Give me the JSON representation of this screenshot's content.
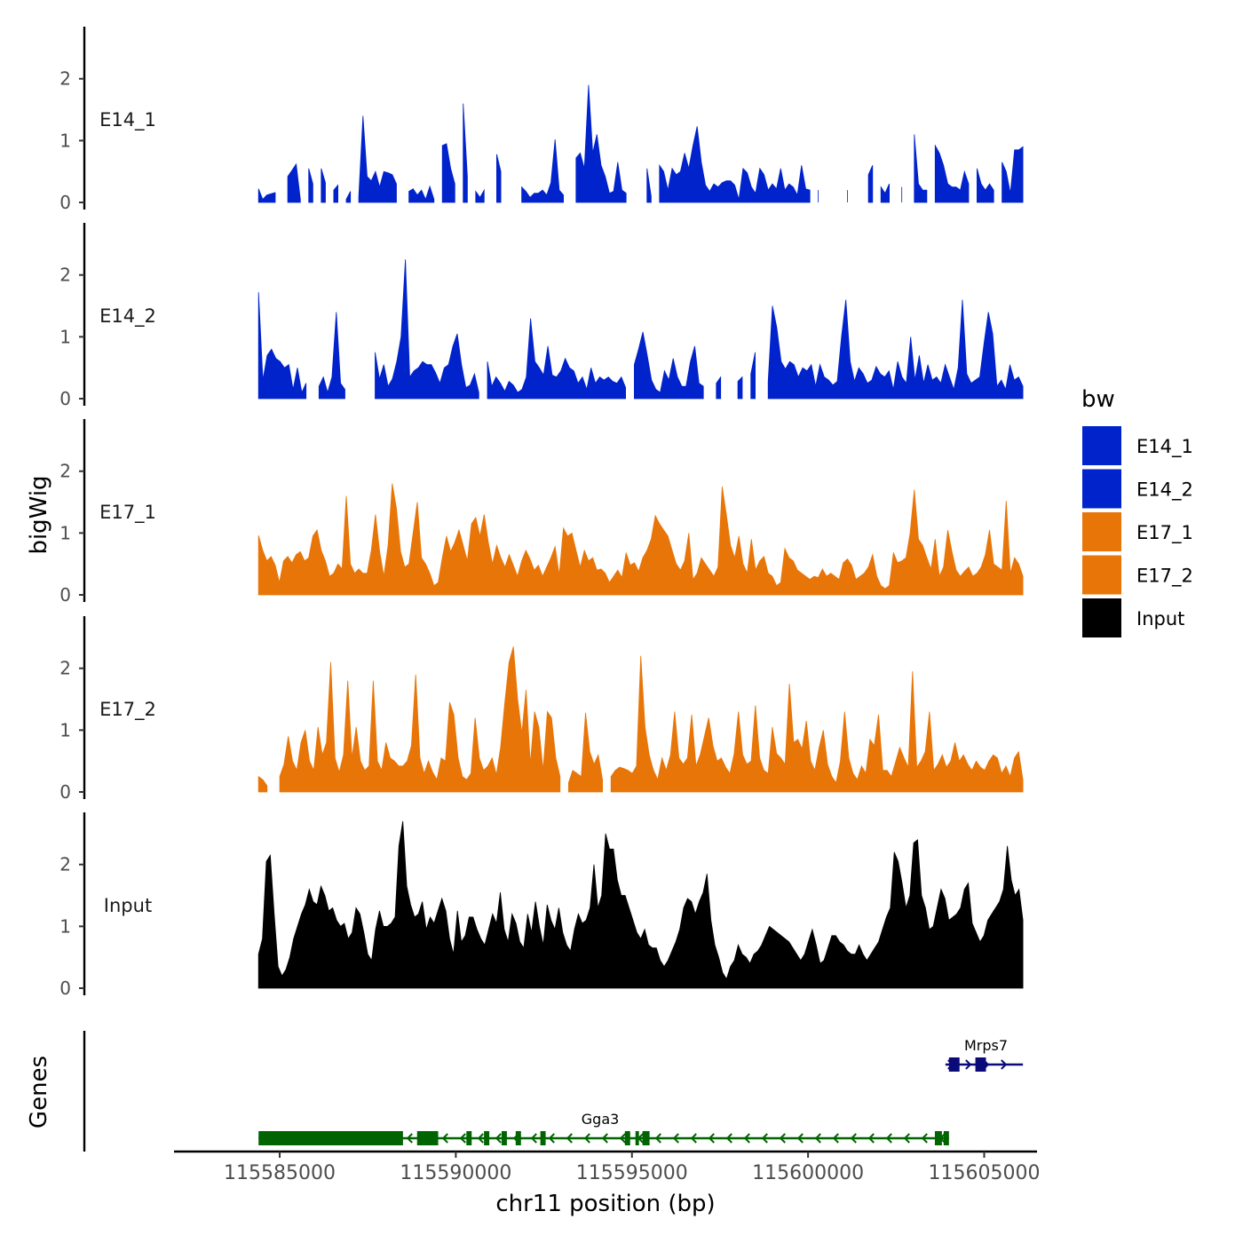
{
  "chart_data": {
    "type": "area",
    "title": "",
    "xlabel": "chr11 position (bp)",
    "ylabel_tracks": "bigWig",
    "ylabel_genes": "Genes",
    "x_range": [
      115582000,
      115606500
    ],
    "data_x_range": [
      115584400,
      115606100
    ],
    "x_ticks": [
      115585000,
      115590000,
      115595000,
      115600000,
      115605000
    ],
    "x_tick_labels": [
      "115585000",
      "115590000",
      "115595000",
      "115600000",
      "115605000"
    ],
    "ylim": [
      0,
      2.8
    ],
    "y_ticks": [
      0,
      1,
      2
    ],
    "y_tick_labels": [
      "0",
      "1",
      "2"
    ],
    "legend": {
      "title": "bw",
      "position": "right",
      "entries": [
        {
          "label": "E14_1",
          "color": "#0023CC"
        },
        {
          "label": "E14_2",
          "color": "#0023CC"
        },
        {
          "label": "E17_1",
          "color": "#E87508"
        },
        {
          "label": "E17_2",
          "color": "#E87508"
        },
        {
          "label": "Input",
          "color": "#000000"
        }
      ]
    },
    "series": [
      {
        "name": "E14_1",
        "color": "#0023CC",
        "values": [
          0.22,
          0.05,
          0.12,
          0.14,
          0.16,
          0,
          0,
          0.42,
          0.52,
          0.62,
          0.05,
          0,
          0.55,
          0.3,
          0,
          0.55,
          0.32,
          0,
          0.2,
          0.28,
          0,
          0.05,
          0.18,
          0,
          0.1,
          1.4,
          0.42,
          0.35,
          0.5,
          0.25,
          0.5,
          0.48,
          0.45,
          0.3,
          0,
          0,
          0.18,
          0.22,
          0.12,
          0.2,
          0.05,
          0.26,
          0.05,
          0,
          0.92,
          0.95,
          0.55,
          0.3,
          0,
          1.6,
          0.42,
          0,
          0.18,
          0.08,
          0.2,
          0,
          0,
          0.78,
          0.5,
          0,
          0,
          0,
          0,
          0.25,
          0.18,
          0.08,
          0.15,
          0.15,
          0.2,
          0.12,
          0.32,
          1.02,
          0.2,
          0.12,
          0,
          0,
          0.72,
          0.8,
          0.55,
          1.9,
          0.8,
          1.1,
          0.6,
          0.42,
          0.15,
          0.18,
          0.65,
          0.2,
          0.15,
          0,
          0,
          0,
          0,
          0.55,
          0.1,
          0,
          0.6,
          0.5,
          0.2,
          0.55,
          0.45,
          0.5,
          0.8,
          0.55,
          0.92,
          1.23,
          0.65,
          0.28,
          0.18,
          0.3,
          0.25,
          0.32,
          0.35,
          0.35,
          0.28,
          0.05,
          0.55,
          0.48,
          0.25,
          0.15,
          0.55,
          0.45,
          0.2,
          0.3,
          0.22,
          0.55,
          0.2,
          0.3,
          0.25,
          0.12,
          0.6,
          0.22,
          0.2,
          0,
          0.2,
          0,
          0,
          0,
          0,
          0,
          0,
          0.2,
          0,
          0,
          0,
          0,
          0.45,
          0.6,
          0,
          0.25,
          0.15,
          0.3,
          0,
          0,
          0.25,
          0,
          0,
          1.1,
          0.3,
          0.2,
          0.2,
          0,
          0.92,
          0.8,
          0.6,
          0.3,
          0.25,
          0.25,
          0.2,
          0.5,
          0.3,
          0,
          0.55,
          0.3,
          0.2,
          0.3,
          0.2,
          0,
          0.65,
          0.5,
          0.15,
          0.85,
          0.85,
          0.9
        ]
      },
      {
        "name": "E14_2",
        "color": "#0023CC",
        "values": [
          1.72,
          0.3,
          0.7,
          0.8,
          0.65,
          0.6,
          0.5,
          0.55,
          0.15,
          0.5,
          0.1,
          0.25,
          0,
          0,
          0.2,
          0.35,
          0.1,
          0.35,
          1.4,
          0.25,
          0.15,
          0,
          0,
          0,
          0,
          0,
          0,
          0.75,
          0.32,
          0.55,
          0.2,
          0.32,
          0.6,
          1.0,
          2.25,
          0.35,
          0.45,
          0.5,
          0.6,
          0.55,
          0.55,
          0.42,
          0.25,
          0.5,
          0.55,
          0.85,
          1.05,
          0.55,
          0.18,
          0.22,
          0.4,
          0.1,
          0,
          0.6,
          0.2,
          0.35,
          0.25,
          0.12,
          0.28,
          0.22,
          0.1,
          0.15,
          0.35,
          1.3,
          0.6,
          0.5,
          0.38,
          0.85,
          0.38,
          0.35,
          0.45,
          0.65,
          0.5,
          0.45,
          0.25,
          0.35,
          0.15,
          0.5,
          0.25,
          0.35,
          0.3,
          0.35,
          0.28,
          0.25,
          0.35,
          0.18,
          0,
          0.55,
          0.8,
          1.08,
          0.7,
          0.3,
          0.15,
          0.1,
          0.45,
          0.3,
          0.65,
          0.35,
          0.2,
          0.2,
          0.6,
          0.85,
          0.25,
          0.2,
          0,
          0,
          0.25,
          0.35,
          0,
          0,
          0,
          0.28,
          0.35,
          0,
          0.4,
          0.75,
          0,
          0,
          0.28,
          1.5,
          1.15,
          0.6,
          0.48,
          0.6,
          0.55,
          0.35,
          0.5,
          0.45,
          0.55,
          0.2,
          0.55,
          0.35,
          0.3,
          0.22,
          0.28,
          1.0,
          1.6,
          0.6,
          0.28,
          0.5,
          0.4,
          0.25,
          0.3,
          0.52,
          0.4,
          0.35,
          0.45,
          0.15,
          0.6,
          0.35,
          0.25,
          1.0,
          0.3,
          0.7,
          0.25,
          0.55,
          0.3,
          0.35,
          0.25,
          0.55,
          0.35,
          0.15,
          0.5,
          1.6,
          0.4,
          0.25,
          0.3,
          0.35,
          0.9,
          1.4,
          1.05,
          0.2,
          0.3,
          0.15,
          0.55,
          0.3,
          0.35,
          0.2
        ]
      },
      {
        "name": "E17_1",
        "color": "#E87508",
        "values": [
          0.96,
          0.72,
          0.55,
          0.62,
          0.48,
          0.2,
          0.55,
          0.62,
          0.52,
          0.65,
          0.7,
          0.55,
          0.6,
          0.95,
          1.05,
          0.72,
          0.55,
          0.3,
          0.35,
          0.5,
          0.42,
          1.6,
          0.5,
          0.35,
          0.42,
          0.35,
          0.35,
          0.72,
          1.3,
          0.7,
          0.3,
          0.8,
          1.8,
          1.4,
          0.7,
          0.45,
          0.5,
          1.0,
          1.5,
          0.6,
          0.5,
          0.35,
          0.15,
          0.2,
          0.6,
          0.95,
          0.7,
          0.85,
          1.05,
          0.8,
          0.55,
          1.15,
          1.25,
          0.95,
          1.3,
          0.85,
          0.5,
          0.8,
          0.6,
          0.45,
          0.65,
          0.48,
          0.3,
          0.55,
          0.72,
          0.58,
          0.4,
          0.48,
          0.3,
          0.45,
          0.6,
          0.78,
          0.32,
          1.08,
          0.95,
          1.0,
          0.72,
          0.45,
          0.72,
          0.55,
          0.6,
          0.4,
          0.42,
          0.35,
          0.2,
          0.3,
          0.4,
          0.28,
          0.68,
          0.48,
          0.52,
          0.38,
          0.6,
          0.72,
          0.9,
          1.28,
          1.15,
          1.05,
          0.95,
          0.72,
          0.5,
          0.4,
          0.55,
          1.0,
          0.25,
          0.35,
          0.6,
          0.5,
          0.4,
          0.3,
          0.45,
          1.75,
          1.3,
          0.8,
          0.6,
          0.95,
          0.5,
          0.35,
          0.9,
          0.4,
          0.55,
          0.62,
          0.35,
          0.3,
          0.15,
          0.2,
          0.75,
          0.6,
          0.55,
          0.4,
          0.35,
          0.3,
          0.25,
          0.3,
          0.28,
          0.42,
          0.3,
          0.35,
          0.3,
          0.25,
          0.52,
          0.58,
          0.48,
          0.25,
          0.3,
          0.35,
          0.45,
          0.65,
          0.3,
          0.15,
          0.1,
          0.15,
          0.68,
          0.52,
          0.55,
          0.6,
          1.0,
          1.7,
          0.9,
          0.8,
          0.6,
          0.42,
          0.9,
          0.3,
          0.45,
          1.05,
          0.7,
          0.4,
          0.3,
          0.38,
          0.45,
          0.3,
          0.35,
          0.45,
          0.65,
          1.05,
          0.5,
          0.45,
          0.4,
          1.52,
          0.35,
          0.6,
          0.5,
          0.3
        ]
      },
      {
        "name": "E17_2",
        "color": "#E87508",
        "values": [
          0.25,
          0.2,
          0.1,
          0,
          0,
          0.25,
          0.45,
          0.9,
          0.5,
          0.35,
          0.8,
          1.0,
          0.5,
          0.35,
          1.05,
          0.6,
          0.8,
          2.1,
          0.55,
          0.32,
          0.6,
          1.8,
          0.55,
          1.05,
          0.5,
          0.35,
          0.42,
          1.8,
          0.5,
          0.35,
          0.8,
          0.55,
          0.5,
          0.42,
          0.42,
          0.5,
          0.75,
          1.9,
          0.55,
          0.3,
          0.5,
          0.32,
          0.2,
          0.55,
          0.5,
          1.45,
          1.25,
          0.55,
          0.25,
          0.2,
          0.3,
          1.2,
          0.55,
          0.35,
          0.42,
          0.55,
          0.28,
          0.72,
          1.45,
          2.1,
          2.35,
          1.5,
          0.95,
          1.65,
          0.45,
          1.3,
          1.05,
          0.35,
          1.3,
          1.2,
          0.55,
          0.25,
          0,
          0.15,
          0.35,
          0.3,
          0.25,
          1.28,
          0.65,
          0.45,
          0.6,
          0.2,
          0,
          0.25,
          0.35,
          0.4,
          0.38,
          0.35,
          0.3,
          0.42,
          2.2,
          1.05,
          0.6,
          0.35,
          0.2,
          0.55,
          0.35,
          0.6,
          1.3,
          0.55,
          0.45,
          0.55,
          1.25,
          0.42,
          0.6,
          0.9,
          1.2,
          0.75,
          0.5,
          0.55,
          0.4,
          0.3,
          0.62,
          1.3,
          0.6,
          0.45,
          0.5,
          1.4,
          0.55,
          0.35,
          0.3,
          1.05,
          0.62,
          0.55,
          0.45,
          1.75,
          0.8,
          0.85,
          0.7,
          1.15,
          0.5,
          0.35,
          0.72,
          1.0,
          0.45,
          0.25,
          0.15,
          0.5,
          1.3,
          0.55,
          0.3,
          0.2,
          0.42,
          0.3,
          0.85,
          0.75,
          1.25,
          0.35,
          0.35,
          0.25,
          0.48,
          0.72,
          0.55,
          0.4,
          1.95,
          0.4,
          0.5,
          0.65,
          1.3,
          0.35,
          0.45,
          0.6,
          0.4,
          0.5,
          0.8,
          0.5,
          0.6,
          0.45,
          0.35,
          0.5,
          0.4,
          0.35,
          0.5,
          0.6,
          0.55,
          0.3,
          0.42,
          0.25,
          0.55,
          0.65,
          0.2
        ]
      },
      {
        "name": "Input",
        "color": "#000000",
        "values": [
          0.55,
          0.8,
          2.05,
          2.15,
          1.2,
          0.35,
          0.2,
          0.3,
          0.5,
          0.8,
          1.0,
          1.2,
          1.35,
          1.6,
          1.4,
          1.35,
          1.65,
          1.5,
          1.25,
          1.3,
          1.1,
          1.0,
          1.05,
          0.8,
          0.9,
          1.3,
          1.2,
          0.9,
          0.55,
          0.45,
          0.95,
          1.25,
          1.0,
          1.0,
          1.05,
          1.15,
          2.3,
          2.7,
          1.65,
          1.35,
          1.15,
          1.2,
          1.4,
          0.95,
          1.15,
          1.05,
          1.25,
          1.45,
          1.25,
          0.8,
          0.55,
          1.25,
          0.75,
          0.85,
          1.15,
          1.15,
          0.95,
          0.8,
          0.7,
          0.95,
          1.2,
          1.05,
          1.55,
          0.95,
          0.75,
          1.2,
          1.05,
          0.75,
          0.65,
          1.2,
          0.9,
          1.4,
          1.0,
          0.7,
          1.35,
          1.1,
          0.95,
          1.3,
          0.9,
          0.7,
          0.6,
          0.95,
          1.2,
          1.05,
          1.1,
          1.3,
          2.0,
          1.3,
          1.5,
          2.5,
          2.25,
          2.25,
          1.75,
          1.5,
          1.5,
          1.3,
          1.1,
          0.9,
          0.8,
          0.95,
          0.7,
          0.65,
          0.65,
          0.45,
          0.35,
          0.45,
          0.6,
          0.75,
          0.95,
          1.3,
          1.45,
          1.4,
          1.2,
          1.4,
          1.55,
          1.85,
          1.1,
          0.7,
          0.5,
          0.25,
          0.15,
          0.35,
          0.45,
          0.7,
          0.55,
          0.5,
          0.4,
          0.55,
          0.6,
          0.7,
          0.85,
          1.0,
          0.95,
          0.9,
          0.85,
          0.8,
          0.75,
          0.65,
          0.55,
          0.45,
          0.55,
          0.75,
          0.95,
          0.7,
          0.4,
          0.45,
          0.65,
          0.85,
          0.85,
          0.75,
          0.7,
          0.6,
          0.55,
          0.55,
          0.7,
          0.55,
          0.45,
          0.55,
          0.65,
          0.75,
          0.95,
          1.15,
          1.3,
          2.2,
          2.05,
          1.7,
          1.3,
          1.5,
          2.35,
          2.4,
          1.5,
          1.3,
          0.95,
          1.0,
          1.3,
          1.6,
          1.45,
          1.1,
          1.15,
          1.2,
          1.3,
          1.6,
          1.7,
          1.05,
          0.9,
          0.75,
          0.85,
          1.1,
          1.2,
          1.3,
          1.4,
          1.6,
          2.3,
          1.75,
          1.5,
          1.6,
          1.1
        ]
      }
    ],
    "genes": [
      {
        "name": "Gga3",
        "color": "#006400",
        "strand": "-",
        "start": 115584400,
        "end": 115604000,
        "exons": [
          [
            115584400,
            115588500
          ],
          [
            115588900,
            115589500
          ],
          [
            115590300,
            115590450
          ],
          [
            115590800,
            115590950
          ],
          [
            115591300,
            115591450
          ],
          [
            115591700,
            115591850
          ],
          [
            115592400,
            115592550
          ],
          [
            115594800,
            115594950
          ],
          [
            115595100,
            115595200
          ],
          [
            115595300,
            115595500
          ],
          [
            115603600,
            115603800
          ],
          [
            115603850,
            115604000
          ]
        ]
      },
      {
        "name": "Mrps7",
        "color": "#0A0A78",
        "strand": "+",
        "start": 115603900,
        "end": 115606100,
        "exons": [
          [
            115604000,
            115604300
          ],
          [
            115604750,
            115605050
          ]
        ]
      }
    ]
  }
}
